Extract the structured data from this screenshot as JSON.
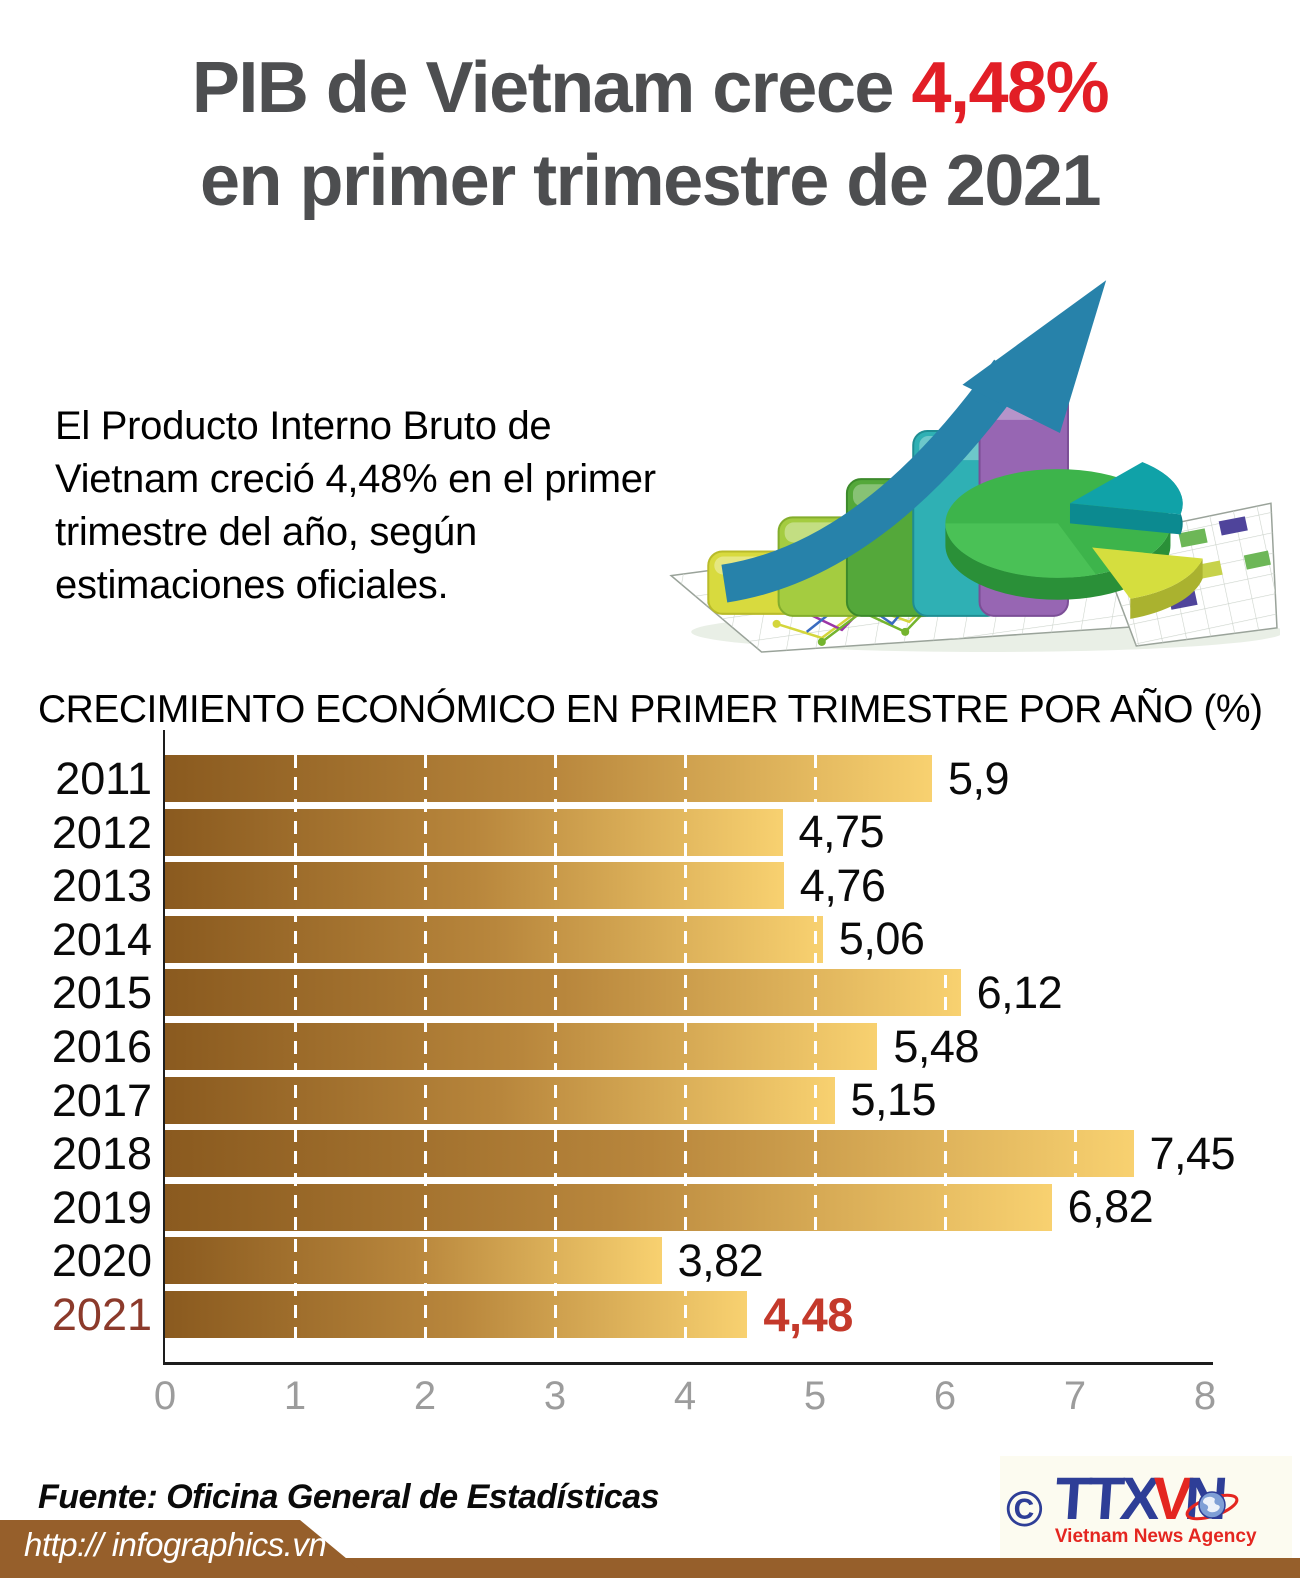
{
  "header": {
    "title_line1_prefix": "PIB de Vietnam crece ",
    "title_highlight": "4,48%",
    "title_line2": "en primer trimestre de 2021"
  },
  "intro": {
    "text": "El Producto Interno Bruto de\nVietnam creció 4,48% en el primer\ntrimestre del año, según\nestimaciones oficiales."
  },
  "chart_data": {
    "type": "bar",
    "orientation": "horizontal",
    "title": "CRECIMIENTO ECONÓMICO EN PRIMER TRIMESTRE POR AÑO (%)",
    "categories": [
      "2011",
      "2012",
      "2013",
      "2014",
      "2015",
      "2016",
      "2017",
      "2018",
      "2019",
      "2020",
      "2021"
    ],
    "values": [
      5.9,
      4.75,
      4.76,
      5.06,
      6.12,
      5.48,
      5.15,
      7.45,
      6.82,
      3.82,
      4.48
    ],
    "value_labels": [
      "5,9",
      "4,75",
      "4,76",
      "5,06",
      "6,12",
      "5,48",
      "5,15",
      "7,45",
      "6,82",
      "3,82",
      "4,48"
    ],
    "xlim": [
      0,
      8
    ],
    "x_ticks": [
      "0",
      "1",
      "2",
      "3",
      "4",
      "5",
      "6",
      "7",
      "8"
    ],
    "grid": "dashed-white-vertical",
    "legend": "none",
    "highlight_category": "2021"
  },
  "footer": {
    "source": "Fuente: Oficina General de Estadísticas",
    "url": "http:// infographics.vn",
    "copyright_symbol": "©",
    "logo": {
      "part1": "TTX",
      "part2": "V",
      "part3": "N",
      "subtitle": "Vietnam News Agency"
    }
  },
  "colors": {
    "accent_red": "#e21e26",
    "title_gray": "#4d4e50",
    "bar_gradient_dark": "#8a5a1f",
    "bar_gradient_light": "#f8d170",
    "highlight_value_red": "#c4392b",
    "highlight_year_maroon": "#8c3a2b",
    "tick_gray": "#9c9c9c",
    "footer_brown": "#965f2b",
    "logo_blue": "#2e3e97",
    "logo_red": "#e42620"
  }
}
